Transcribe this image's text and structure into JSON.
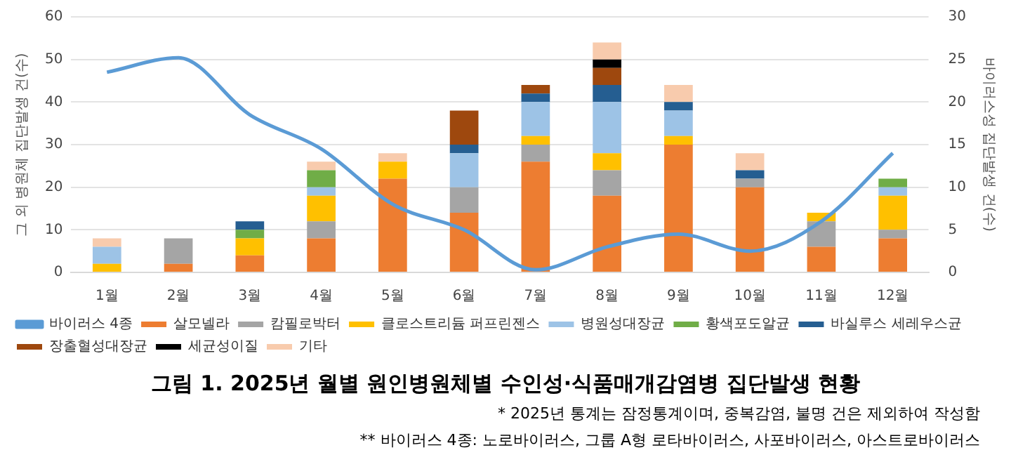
{
  "chart_data": {
    "type": "bar",
    "stacked": true,
    "title": "그림 1. 2025년 월별 원인병원체별 수인성·식품매개감염병 집단발생 현황",
    "annotations": [
      "* 2025년 통계는 잠정통계이며, 중복감염, 불명 건은 제외하여 작성함",
      "** 바이러스 4종: 노로바이러스, 그룹 A형 로타바이러스, 사포바이러스, 아스트로바이러스"
    ],
    "ylabel": "그 외 병원체 집단발생 건(수)",
    "y2label": "바이러스성 집단발생 건(수)",
    "categories": [
      "1월",
      "2월",
      "3월",
      "4월",
      "5월",
      "6월",
      "7월",
      "8월",
      "9월",
      "10월",
      "11월",
      "12월"
    ],
    "ylim": [
      0,
      60
    ],
    "yticks": [
      0,
      10,
      20,
      30,
      40,
      50,
      60
    ],
    "y2lim": [
      0,
      30
    ],
    "y2ticks": [
      0,
      5,
      10,
      15,
      20,
      25,
      30
    ],
    "grid": "y",
    "legend": "bottom",
    "series": [
      {
        "name": "살모넬라",
        "color": "#ed7d31",
        "values": [
          0,
          2,
          4,
          8,
          22,
          14,
          26,
          18,
          30,
          20,
          6,
          8
        ]
      },
      {
        "name": "캄필로박터",
        "color": "#a5a5a5",
        "values": [
          0,
          6,
          0,
          4,
          0,
          6,
          4,
          6,
          0,
          2,
          6,
          2
        ]
      },
      {
        "name": "클로스트리듐 퍼프린젠스",
        "color": "#ffc000",
        "values": [
          2,
          0,
          4,
          6,
          4,
          0,
          2,
          4,
          2,
          0,
          2,
          8
        ]
      },
      {
        "name": "병원성대장균",
        "color": "#9dc3e6",
        "values": [
          4,
          0,
          0,
          2,
          0,
          8,
          8,
          12,
          6,
          0,
          0,
          2
        ]
      },
      {
        "name": "황색포도알균",
        "color": "#70ad47",
        "values": [
          0,
          0,
          2,
          4,
          0,
          0,
          0,
          0,
          0,
          0,
          0,
          2
        ]
      },
      {
        "name": "바실루스 세레우스균",
        "color": "#255e91",
        "values": [
          0,
          0,
          2,
          0,
          0,
          2,
          2,
          4,
          2,
          2,
          0,
          0
        ]
      },
      {
        "name": "장출혈성대장균",
        "color": "#9e480e",
        "values": [
          0,
          0,
          0,
          0,
          0,
          8,
          2,
          4,
          0,
          0,
          0,
          0
        ]
      },
      {
        "name": "세균성이질",
        "color": "#000000",
        "values": [
          0,
          0,
          0,
          0,
          0,
          0,
          0,
          2,
          0,
          0,
          0,
          0
        ]
      },
      {
        "name": "기타",
        "color": "#f8cbad",
        "values": [
          2,
          0,
          0,
          2,
          2,
          0,
          0,
          4,
          4,
          4,
          0,
          0
        ]
      },
      {
        "name": "바이러스 4종",
        "type": "line",
        "axis": "y2",
        "color": "#5b9bd5",
        "marker": "none",
        "line_style": "solid",
        "values": [
          23.5,
          25.2,
          18.5,
          14.5,
          8,
          5,
          0.3,
          3,
          4.5,
          2.5,
          6,
          14
        ]
      }
    ]
  }
}
